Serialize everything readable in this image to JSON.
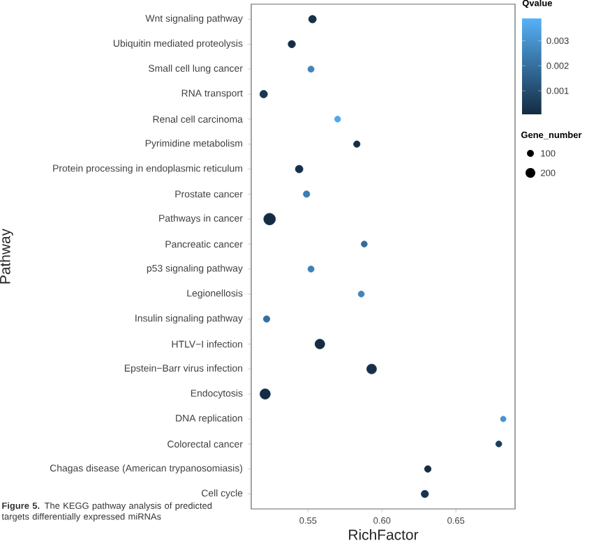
{
  "chart_data": {
    "type": "bubble",
    "orientation": "horizontal",
    "xlabel": "RichFactor",
    "ylabel": "Pathway",
    "clabel": "Qvalue",
    "legend_title": "Gene_number",
    "categories": [
      "Wnt signaling pathway",
      "Ubiquitin mediated proteolysis",
      "Small cell lung cancer",
      "RNA transport",
      "Renal cell carcinoma",
      "Pyrimidine metabolism",
      "Protein processing in endoplasmic reticulum",
      "Prostate cancer",
      "Pathways in cancer",
      "Pancreatic cancer",
      "p53 signaling pathway",
      "Legionellosis",
      "Insulin signaling pathway",
      "HTLV−I infection",
      "Epstein−Barr virus infection",
      "Endocytosis",
      "DNA replication",
      "Colorectal cancer",
      "Chagas disease (American trypanosomiasis)",
      "Cell cycle"
    ],
    "values": [
      0.553,
      0.539,
      0.552,
      0.52,
      0.57,
      0.583,
      0.544,
      0.549,
      0.524,
      0.588,
      0.552,
      0.586,
      0.522,
      0.558,
      0.593,
      0.521,
      0.682,
      0.679,
      0.631,
      0.629
    ],
    "sizes": [
      123,
      113,
      82,
      123,
      76,
      89,
      123,
      89,
      287,
      79,
      82,
      79,
      89,
      200,
      200,
      224,
      67,
      79,
      92,
      113
    ],
    "cvalues": [
      0.0002,
      0.0001,
      0.0026,
      0.0004,
      0.0036,
      0.0001,
      0.0002,
      0.0024,
      0.0001,
      0.0019,
      0.0025,
      0.0026,
      0.002,
      0.0001,
      0.0002,
      0.0001,
      0.003,
      0.0006,
      0.0001,
      0.0003
    ],
    "size_legend": [
      100,
      200
    ],
    "clim": [
      5e-05,
      0.0039
    ],
    "cticks": [
      0.001,
      0.002,
      0.003
    ],
    "xlim": [
      0.5116,
      0.69
    ],
    "xticks": [
      0.55,
      {
        "value": 0.6,
        "label": "0.60"
      },
      0.65
    ],
    "annotations": [
      "**Figure 5.** The KEGG pathway analysis of predicted targets differentially expressed miRNAs"
    ]
  }
}
